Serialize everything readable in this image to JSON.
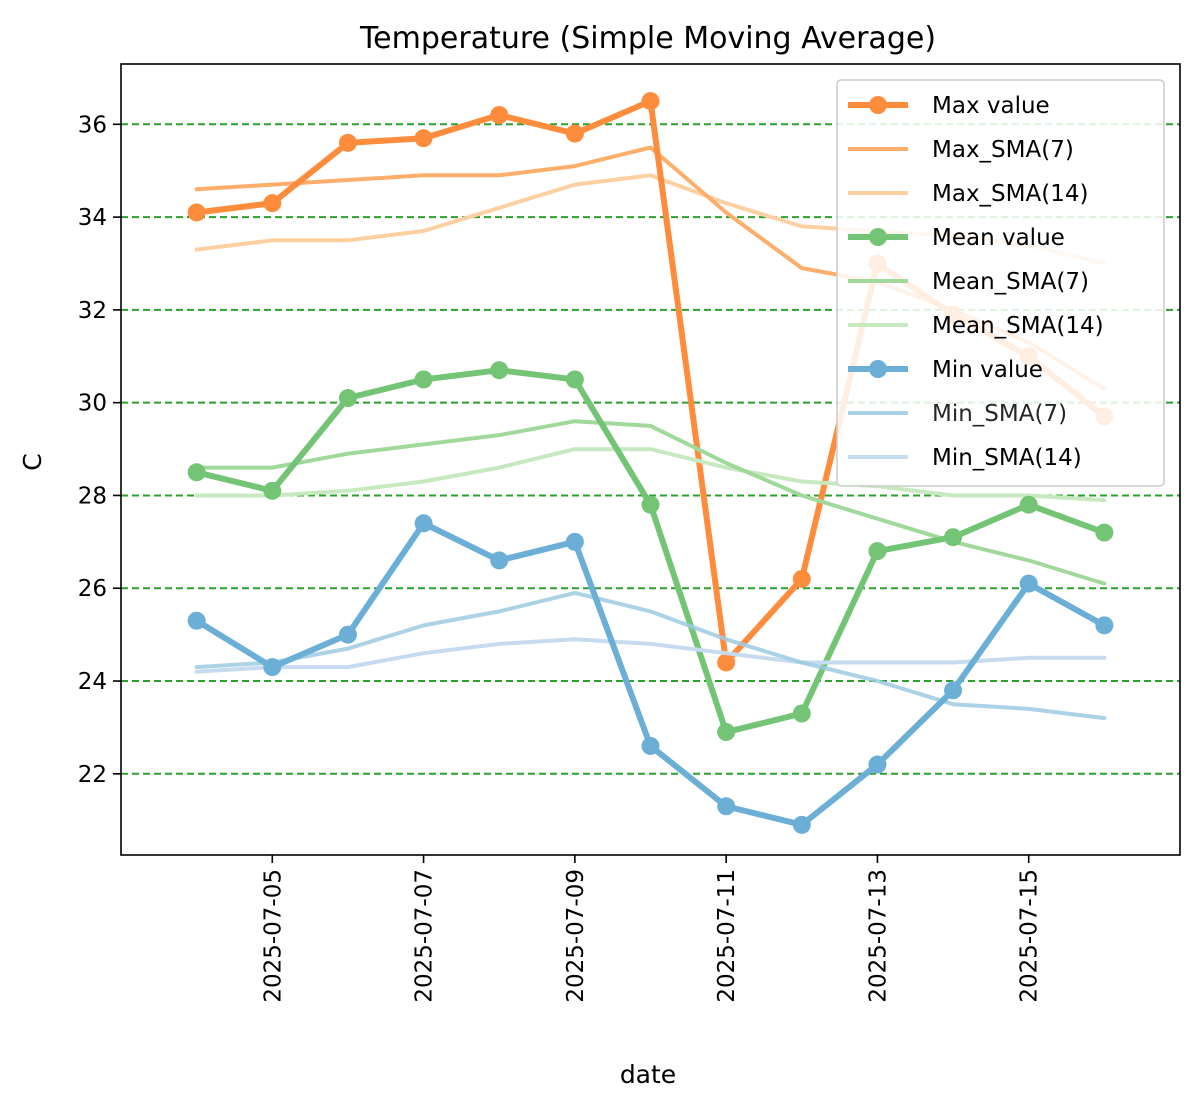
{
  "chart_data": {
    "type": "line",
    "title": "Temperature (Simple Moving Average)",
    "xlabel": "date",
    "ylabel": "C",
    "x": [
      "2025-07-04",
      "2025-07-05",
      "2025-07-06",
      "2025-07-07",
      "2025-07-08",
      "2025-07-09",
      "2025-07-10",
      "2025-07-11",
      "2025-07-12",
      "2025-07-13",
      "2025-07-14",
      "2025-07-15",
      "2025-07-16"
    ],
    "xlim": [
      "2025-07-03",
      "2025-07-17"
    ],
    "ylim": [
      20.25,
      37.3
    ],
    "xticks": [
      "2025-07-05",
      "2025-07-07",
      "2025-07-09",
      "2025-07-11",
      "2025-07-13",
      "2025-07-15"
    ],
    "yticks": [
      22,
      24,
      26,
      28,
      30,
      32,
      34,
      36
    ],
    "grid": {
      "axis": "y",
      "style": "dashed",
      "color": "#2ca02c"
    },
    "legend": {
      "position": "top-right"
    },
    "series": [
      {
        "name": "Max value",
        "color": "#fd8d3c",
        "width": 6,
        "markers": true,
        "opacity": 1,
        "values": [
          34.1,
          34.3,
          35.6,
          35.7,
          36.2,
          35.8,
          36.5,
          24.4,
          26.2,
          33.0,
          31.9,
          31.0,
          29.7
        ]
      },
      {
        "name": "Max_SMA(7)",
        "color": "#fdae6b",
        "width": 4,
        "markers": false,
        "opacity": 1,
        "values": [
          34.6,
          34.7,
          34.8,
          34.9,
          34.9,
          35.1,
          35.5,
          34.1,
          32.9,
          32.6,
          32.0,
          31.3,
          30.3
        ]
      },
      {
        "name": "Max_SMA(14)",
        "color": "#fdd0a2",
        "width": 4,
        "markers": false,
        "opacity": 1,
        "values": [
          33.3,
          33.5,
          33.5,
          33.7,
          34.2,
          34.7,
          34.9,
          34.3,
          33.8,
          33.7,
          33.6,
          33.4,
          33.0
        ]
      },
      {
        "name": "Mean value",
        "color": "#74c476",
        "width": 6,
        "markers": true,
        "opacity": 1,
        "values": [
          28.5,
          28.1,
          30.1,
          30.5,
          30.7,
          30.5,
          27.8,
          22.9,
          23.3,
          26.8,
          27.1,
          27.8,
          27.2
        ]
      },
      {
        "name": "Mean_SMA(7)",
        "color": "#a1d99b",
        "width": 4,
        "markers": false,
        "opacity": 1,
        "values": [
          28.6,
          28.6,
          28.9,
          29.1,
          29.3,
          29.6,
          29.5,
          28.7,
          28.0,
          27.5,
          27.0,
          26.6,
          26.1
        ]
      },
      {
        "name": "Mean_SMA(14)",
        "color": "#c7e9c0",
        "width": 4,
        "markers": false,
        "opacity": 1,
        "values": [
          28.0,
          28.0,
          28.1,
          28.3,
          28.6,
          29.0,
          29.0,
          28.6,
          28.3,
          28.2,
          28.0,
          28.0,
          27.9
        ]
      },
      {
        "name": "Min value",
        "color": "#6baed6",
        "width": 6,
        "markers": true,
        "opacity": 1,
        "values": [
          25.3,
          24.3,
          25.0,
          27.4,
          26.6,
          27.0,
          22.6,
          21.3,
          20.9,
          22.2,
          23.8,
          26.1,
          25.2
        ]
      },
      {
        "name": "Min_SMA(7)",
        "color": "#9ecae1",
        "width": 4,
        "markers": false,
        "opacity": 0.85,
        "values": [
          24.3,
          24.4,
          24.7,
          25.2,
          25.5,
          25.9,
          25.5,
          24.9,
          24.4,
          24.0,
          23.5,
          23.4,
          23.2
        ]
      },
      {
        "name": "Min_SMA(14)",
        "color": "#c6dbef",
        "width": 4,
        "markers": false,
        "opacity": 1,
        "values": [
          24.2,
          24.3,
          24.3,
          24.6,
          24.8,
          24.9,
          24.8,
          24.6,
          24.4,
          24.4,
          24.4,
          24.5,
          24.5
        ]
      }
    ]
  }
}
